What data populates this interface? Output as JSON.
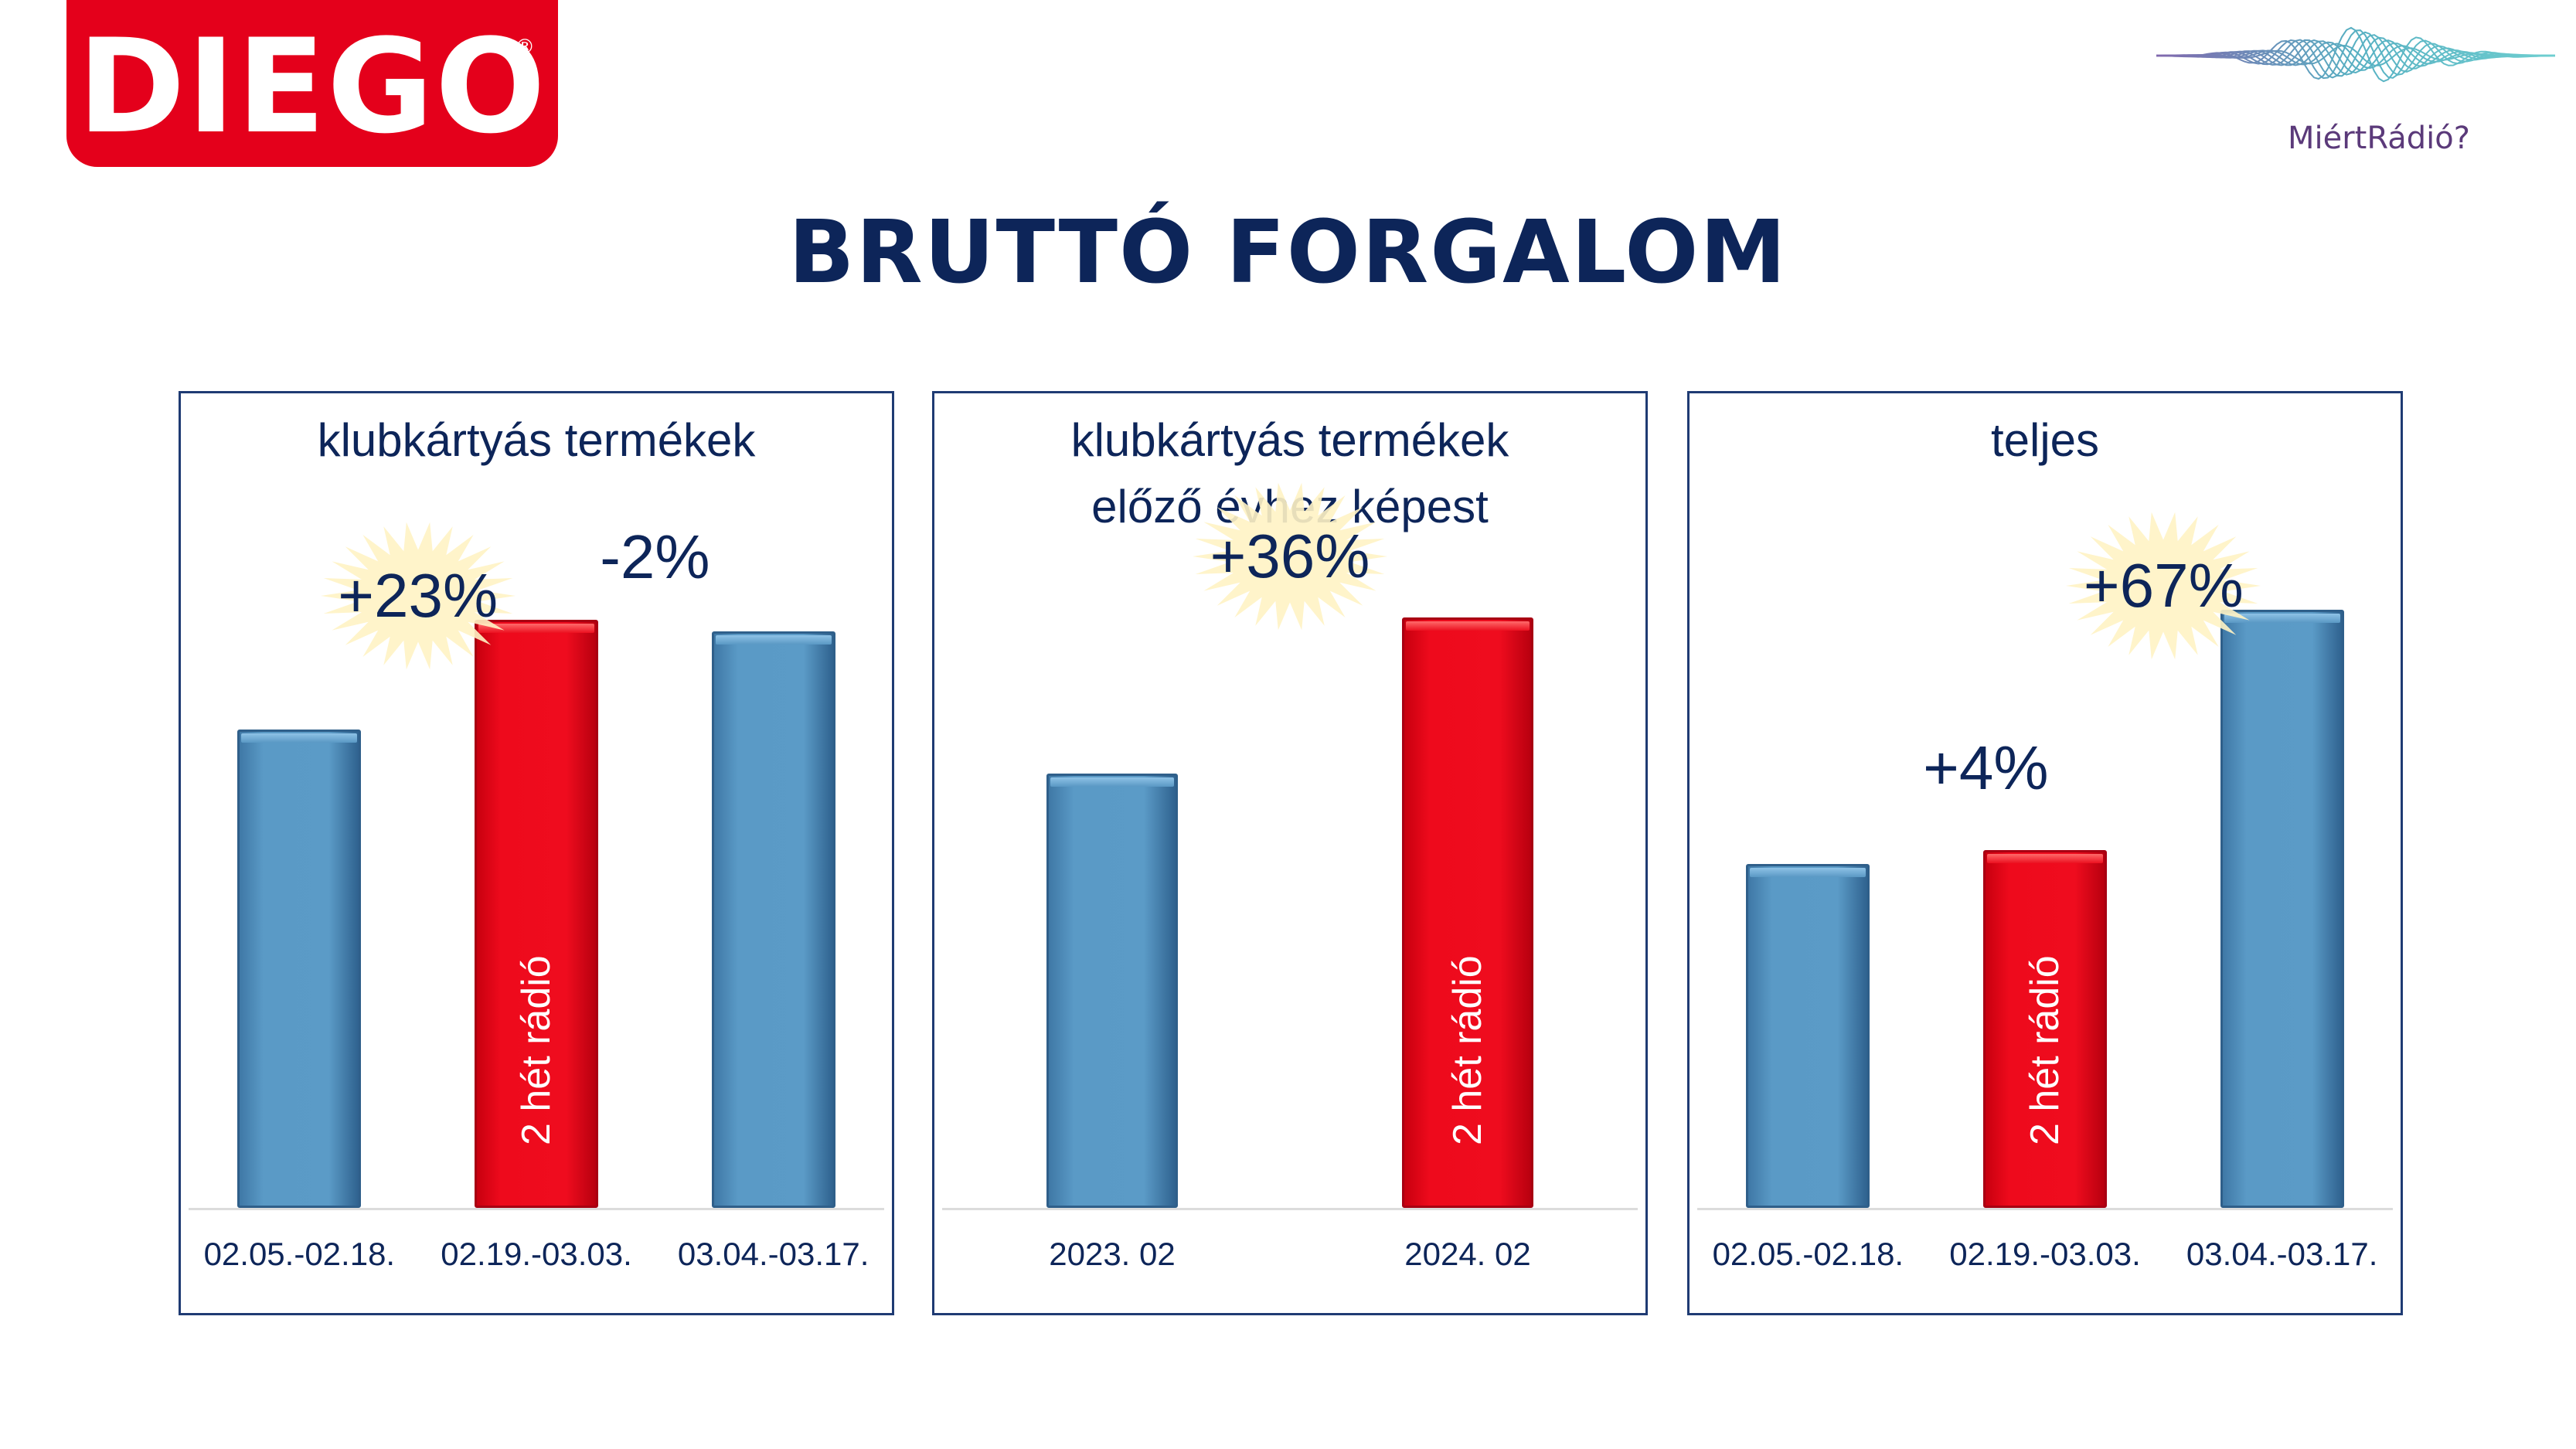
{
  "brand": {
    "logo_text": "DIEGO",
    "registered_mark": "®",
    "partner_name": "MiértRádió?"
  },
  "title": "BRUTTÓ FORGALOM",
  "colors": {
    "baseline_bar": "#5b9bc7",
    "radio_bar": "#ef0c1e",
    "title": "#0d2559",
    "logo_bg": "#e4001b",
    "highlight_burst": "#fff3c4"
  },
  "chart_data": [
    {
      "type": "bar",
      "title": "klubkártyás termékek",
      "categories": [
        "02.05.-02.18.",
        "02.19.-03.03.",
        "03.04.-03.17."
      ],
      "values": [
        100,
        123,
        120.5
      ],
      "highlight": [
        false,
        true,
        false
      ],
      "bar_labels": [
        "",
        "2 hét rádió",
        ""
      ],
      "annotations": [
        {
          "text": "+23%",
          "category_index": 0.5,
          "y": 128,
          "burst": true
        },
        {
          "text": "-2%",
          "category_index": 1.5,
          "y": 136,
          "burst": false
        }
      ],
      "ylim": [
        0,
        138
      ],
      "grid": false,
      "legend": "none"
    },
    {
      "type": "bar",
      "title": "klubkártyás termékek",
      "subtitle": "előző évhez képest",
      "categories": [
        "2023. 02",
        "2024. 02"
      ],
      "values": [
        100,
        136
      ],
      "highlight": [
        false,
        true
      ],
      "bar_labels": [
        "",
        "2 hét rádió"
      ],
      "annotations": [
        {
          "text": "+36%",
          "category_index": 0.5,
          "y": 150,
          "burst": true
        }
      ],
      "ylim": [
        0,
        152
      ],
      "grid": false,
      "legend": "none"
    },
    {
      "type": "bar",
      "title": "teljes",
      "categories": [
        "02.05.-02.18.",
        "02.19.-03.03.",
        "03.04.-03.17."
      ],
      "values": [
        100,
        104,
        174
      ],
      "highlight": [
        false,
        true,
        false
      ],
      "bar_labels": [
        "",
        "2 hét rádió",
        ""
      ],
      "annotations": [
        {
          "text": "+4%",
          "category_index": 0.75,
          "y": 128,
          "burst": false
        },
        {
          "text": "+67%",
          "category_index": 1.5,
          "y": 181,
          "burst": true
        }
      ],
      "ylim": [
        0,
        192
      ],
      "grid": false,
      "legend": "none"
    }
  ]
}
